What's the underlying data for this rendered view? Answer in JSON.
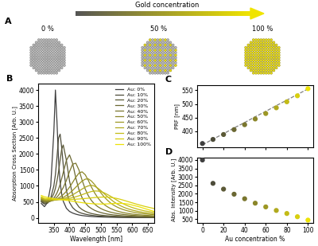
{
  "diagram": {
    "label": "A",
    "arrow_text": "Gold concentration",
    "particles": [
      "0 %",
      "50 %",
      "100 %"
    ]
  },
  "chart_data": [
    {
      "type": "line",
      "title": "B",
      "x": [
        310,
        320,
        330,
        340,
        350,
        355,
        360,
        365,
        370,
        375,
        380,
        390,
        400,
        410,
        420,
        430,
        440,
        450,
        460,
        470,
        480,
        490,
        500,
        510,
        520,
        530,
        540,
        550,
        560,
        570,
        580,
        590,
        600,
        620,
        640,
        670
      ],
      "xlabel": "Wavelength [nm]",
      "ylabel": "Absorption Cross Section [Arb. U.]",
      "xlim": [
        300,
        670
      ],
      "xticks": [
        350,
        400,
        450,
        500,
        550,
        600,
        650
      ],
      "ylim": [
        -150,
        4200
      ],
      "yticks": [
        0,
        500,
        1000,
        1500,
        2000,
        2500,
        3000,
        3500,
        4000
      ],
      "legend": "upper right",
      "series": [
        {
          "name": "Au: 0%",
          "color": "#3f3f3f",
          "values": [
            450,
            350,
            480,
            1000,
            2700,
            4000,
            3000,
            1800,
            1100,
            750,
            520,
            300,
            200,
            150,
            115,
            90,
            72,
            60,
            50,
            42,
            36,
            31,
            27,
            24,
            21,
            19,
            17,
            15,
            14,
            13,
            12,
            11,
            10,
            9,
            8,
            7
          ]
        },
        {
          "name": "Au: 10%",
          "color": "#4d4c3a",
          "values": [
            500,
            430,
            460,
            620,
            1000,
            1350,
            1900,
            2500,
            2620,
            2200,
            1650,
            850,
            480,
            320,
            230,
            175,
            140,
            115,
            95,
            80,
            68,
            58,
            50,
            44,
            39,
            35,
            31,
            28,
            25,
            23,
            21,
            19,
            17,
            15,
            13,
            11
          ]
        },
        {
          "name": "Au: 20%",
          "color": "#5b5936",
          "values": [
            520,
            460,
            470,
            560,
            760,
            920,
            1150,
            1450,
            1800,
            2150,
            2280,
            1800,
            1150,
            720,
            480,
            340,
            260,
            205,
            165,
            135,
            115,
            98,
            85,
            74,
            65,
            58,
            52,
            46,
            42,
            38,
            34,
            31,
            29,
            25,
            21,
            17
          ]
        },
        {
          "name": "Au: 30%",
          "color": "#6a6732",
          "values": [
            540,
            490,
            480,
            530,
            620,
            690,
            780,
            900,
            1050,
            1230,
            1420,
            1800,
            1970,
            1700,
            1250,
            880,
            630,
            470,
            360,
            290,
            235,
            195,
            165,
            140,
            120,
            105,
            92,
            82,
            73,
            65,
            58,
            53,
            48,
            40,
            33,
            26
          ]
        },
        {
          "name": "Au: 40%",
          "color": "#7a762e",
          "values": [
            560,
            510,
            500,
            520,
            570,
            610,
            650,
            710,
            780,
            860,
            950,
            1170,
            1450,
            1680,
            1710,
            1500,
            1180,
            900,
            690,
            540,
            430,
            350,
            290,
            245,
            210,
            180,
            157,
            138,
            122,
            108,
            97,
            87,
            79,
            66,
            55,
            43
          ]
        },
        {
          "name": "Au: 50%",
          "color": "#8b8629",
          "values": [
            580,
            530,
            520,
            530,
            550,
            570,
            590,
            620,
            650,
            690,
            730,
            830,
            960,
            1110,
            1270,
            1400,
            1440,
            1350,
            1170,
            960,
            780,
            630,
            510,
            420,
            350,
            295,
            252,
            218,
            190,
            167,
            148,
            132,
            118,
            97,
            80,
            62
          ]
        },
        {
          "name": "Au: 60%",
          "color": "#9d9724",
          "values": [
            600,
            550,
            540,
            540,
            550,
            560,
            570,
            585,
            600,
            620,
            640,
            700,
            770,
            860,
            960,
            1060,
            1150,
            1210,
            1220,
            1150,
            1040,
            910,
            780,
            660,
            560,
            470,
            400,
            345,
            300,
            262,
            232,
            206,
            184,
            150,
            124,
            96
          ]
        },
        {
          "name": "Au: 70%",
          "color": "#b0a91e",
          "values": [
            620,
            570,
            560,
            555,
            555,
            560,
            565,
            572,
            580,
            590,
            600,
            630,
            670,
            720,
            780,
            840,
            900,
            960,
            1000,
            1020,
            990,
            930,
            850,
            760,
            670,
            590,
            510,
            445,
            390,
            343,
            303,
            270,
            242,
            197,
            162,
            125
          ]
        },
        {
          "name": "Au: 80%",
          "color": "#c3bb17",
          "values": [
            640,
            590,
            580,
            570,
            565,
            565,
            566,
            568,
            570,
            573,
            576,
            590,
            610,
            635,
            660,
            690,
            725,
            760,
            795,
            825,
            840,
            838,
            820,
            785,
            735,
            680,
            620,
            560,
            500,
            448,
            400,
            358,
            322,
            263,
            217,
            168
          ]
        },
        {
          "name": "Au: 90%",
          "color": "#d8cf0f",
          "values": [
            660,
            610,
            600,
            590,
            580,
            578,
            577,
            576,
            575,
            574,
            573,
            572,
            574,
            578,
            583,
            590,
            598,
            607,
            615,
            625,
            635,
            643,
            648,
            650,
            648,
            640,
            627,
            608,
            585,
            558,
            528,
            498,
            468,
            410,
            358,
            290
          ]
        },
        {
          "name": "Au: 100%",
          "color": "#ede305",
          "values": [
            700,
            660,
            640,
            620,
            600,
            592,
            585,
            578,
            572,
            566,
            560,
            548,
            535,
            520,
            505,
            490,
            475,
            462,
            452,
            444,
            438,
            434,
            432,
            433,
            437,
            443,
            448,
            452,
            453,
            450,
            442,
            425,
            400,
            350,
            290,
            200
          ]
        }
      ]
    },
    {
      "type": "scatter",
      "title": "C",
      "x": [
        0,
        10,
        20,
        30,
        40,
        50,
        60,
        70,
        80,
        90,
        100
      ],
      "ylabel": "PRF [nm]",
      "xlim": [
        -5,
        105
      ],
      "xticks": [
        0,
        20,
        40,
        60,
        80,
        100
      ],
      "ylim": [
        340,
        570
      ],
      "yticks": [
        400,
        450,
        500,
        550
      ],
      "tick_labels": "y",
      "series": [
        {
          "type": "line",
          "line_style": "dashed",
          "color": "#808080",
          "values": [
            350,
            371,
            391,
            412,
            432,
            453,
            473,
            494,
            514,
            535,
            555
          ]
        },
        {
          "type": "scatter",
          "colors": [
            "#3f3f3f",
            "#4d4c3a",
            "#5b5936",
            "#6a6732",
            "#7a762e",
            "#8b8629",
            "#9d9724",
            "#b0a91e",
            "#c3bb17",
            "#d8cf0f",
            "#ede305"
          ],
          "values": [
            355,
            370,
            388,
            406,
            424,
            445,
            465,
            486,
            508,
            530,
            556
          ]
        }
      ]
    },
    {
      "type": "scatter",
      "title": "D",
      "x": [
        0,
        10,
        20,
        30,
        40,
        50,
        60,
        70,
        80,
        90,
        100
      ],
      "xlabel": "Au concentration %",
      "ylabel": "Abs. Intensity [Arb. U.]",
      "xlim": [
        -5,
        105
      ],
      "xticks": [
        0,
        20,
        40,
        60,
        80,
        100
      ],
      "ylim": [
        300,
        4150
      ],
      "yticks": [
        500,
        1000,
        1500,
        2000,
        2500,
        3000,
        3500,
        4000
      ],
      "series": [
        {
          "colors": [
            "#3f3f3f",
            "#4d4c3a",
            "#5b5936",
            "#6a6732",
            "#7a762e",
            "#8b8629",
            "#9d9724",
            "#b0a91e",
            "#c3bb17",
            "#d8cf0f",
            "#ede305"
          ],
          "values": [
            4000,
            2620,
            2280,
            1980,
            1710,
            1450,
            1230,
            1020,
            840,
            650,
            450
          ]
        }
      ]
    }
  ]
}
